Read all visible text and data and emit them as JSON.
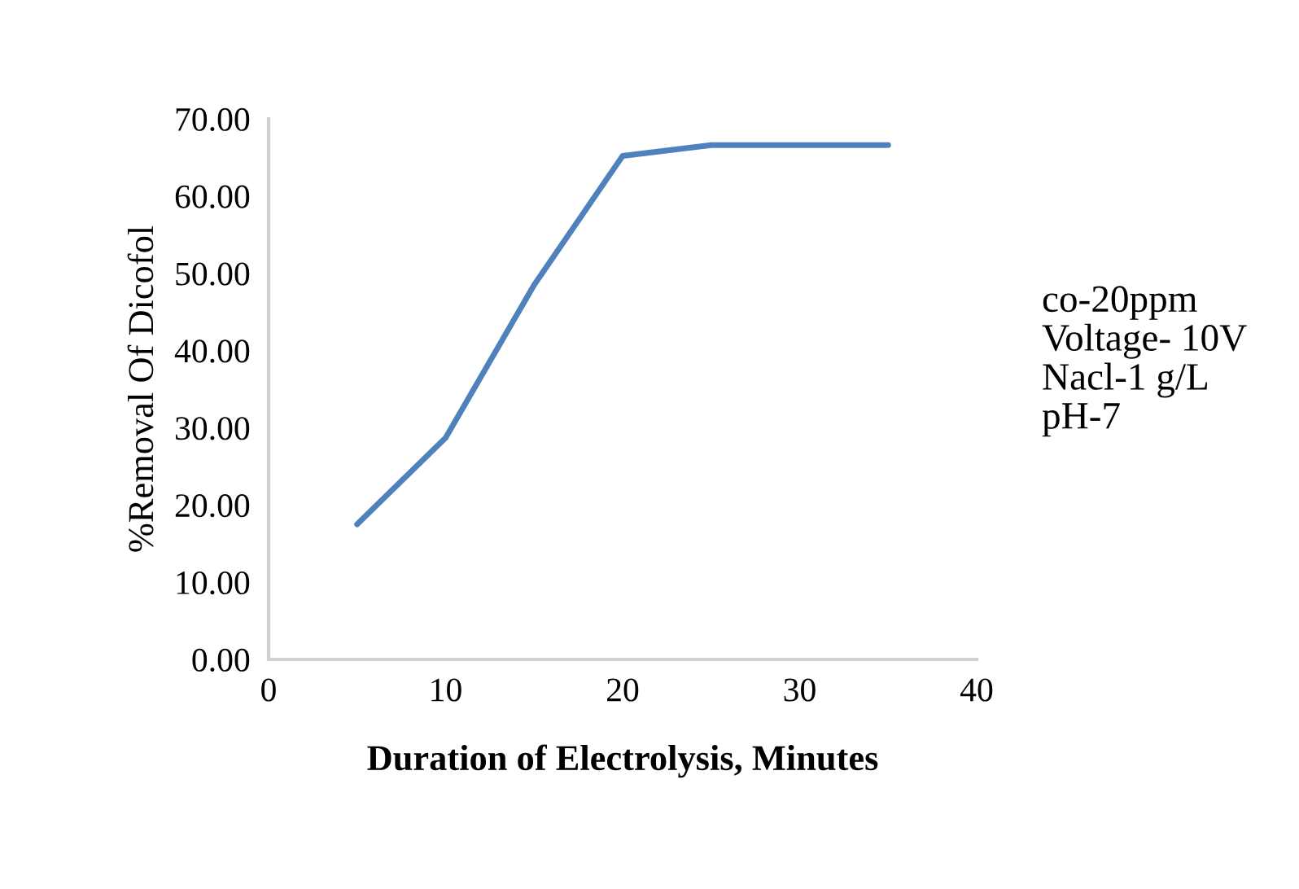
{
  "chart_data": {
    "type": "line",
    "xlabel": "Duration of Electrolysis, Minutes",
    "ylabel": "%Removal Of Dicofol",
    "x": [
      5,
      10,
      15,
      20,
      25,
      30,
      35
    ],
    "series": [
      {
        "color": "#4f81bd",
        "values": [
          17.5,
          28.7,
          48.5,
          65.2,
          66.6,
          66.6,
          66.6
        ]
      }
    ],
    "xlim": [
      0,
      40
    ],
    "xticks": [
      0,
      10,
      20,
      30,
      40
    ],
    "ylim": [
      0,
      70
    ],
    "yticks": [
      {
        "value": 0,
        "label": "0.00"
      },
      {
        "value": 10,
        "label": "10.00"
      },
      {
        "value": 20,
        "label": "20.00"
      },
      {
        "value": 30,
        "label": "30.00"
      },
      {
        "value": 40,
        "label": "40.00"
      },
      {
        "value": 50,
        "label": "50.00"
      },
      {
        "value": 60,
        "label": "60.00"
      },
      {
        "value": 70,
        "label": "70.00"
      }
    ],
    "grid": false,
    "legend": false,
    "marker": "none",
    "line_style": "solid",
    "annotations": [
      "co-20ppm\nVoltage- 10V\nNacl-1 g/L\npH-7"
    ]
  }
}
